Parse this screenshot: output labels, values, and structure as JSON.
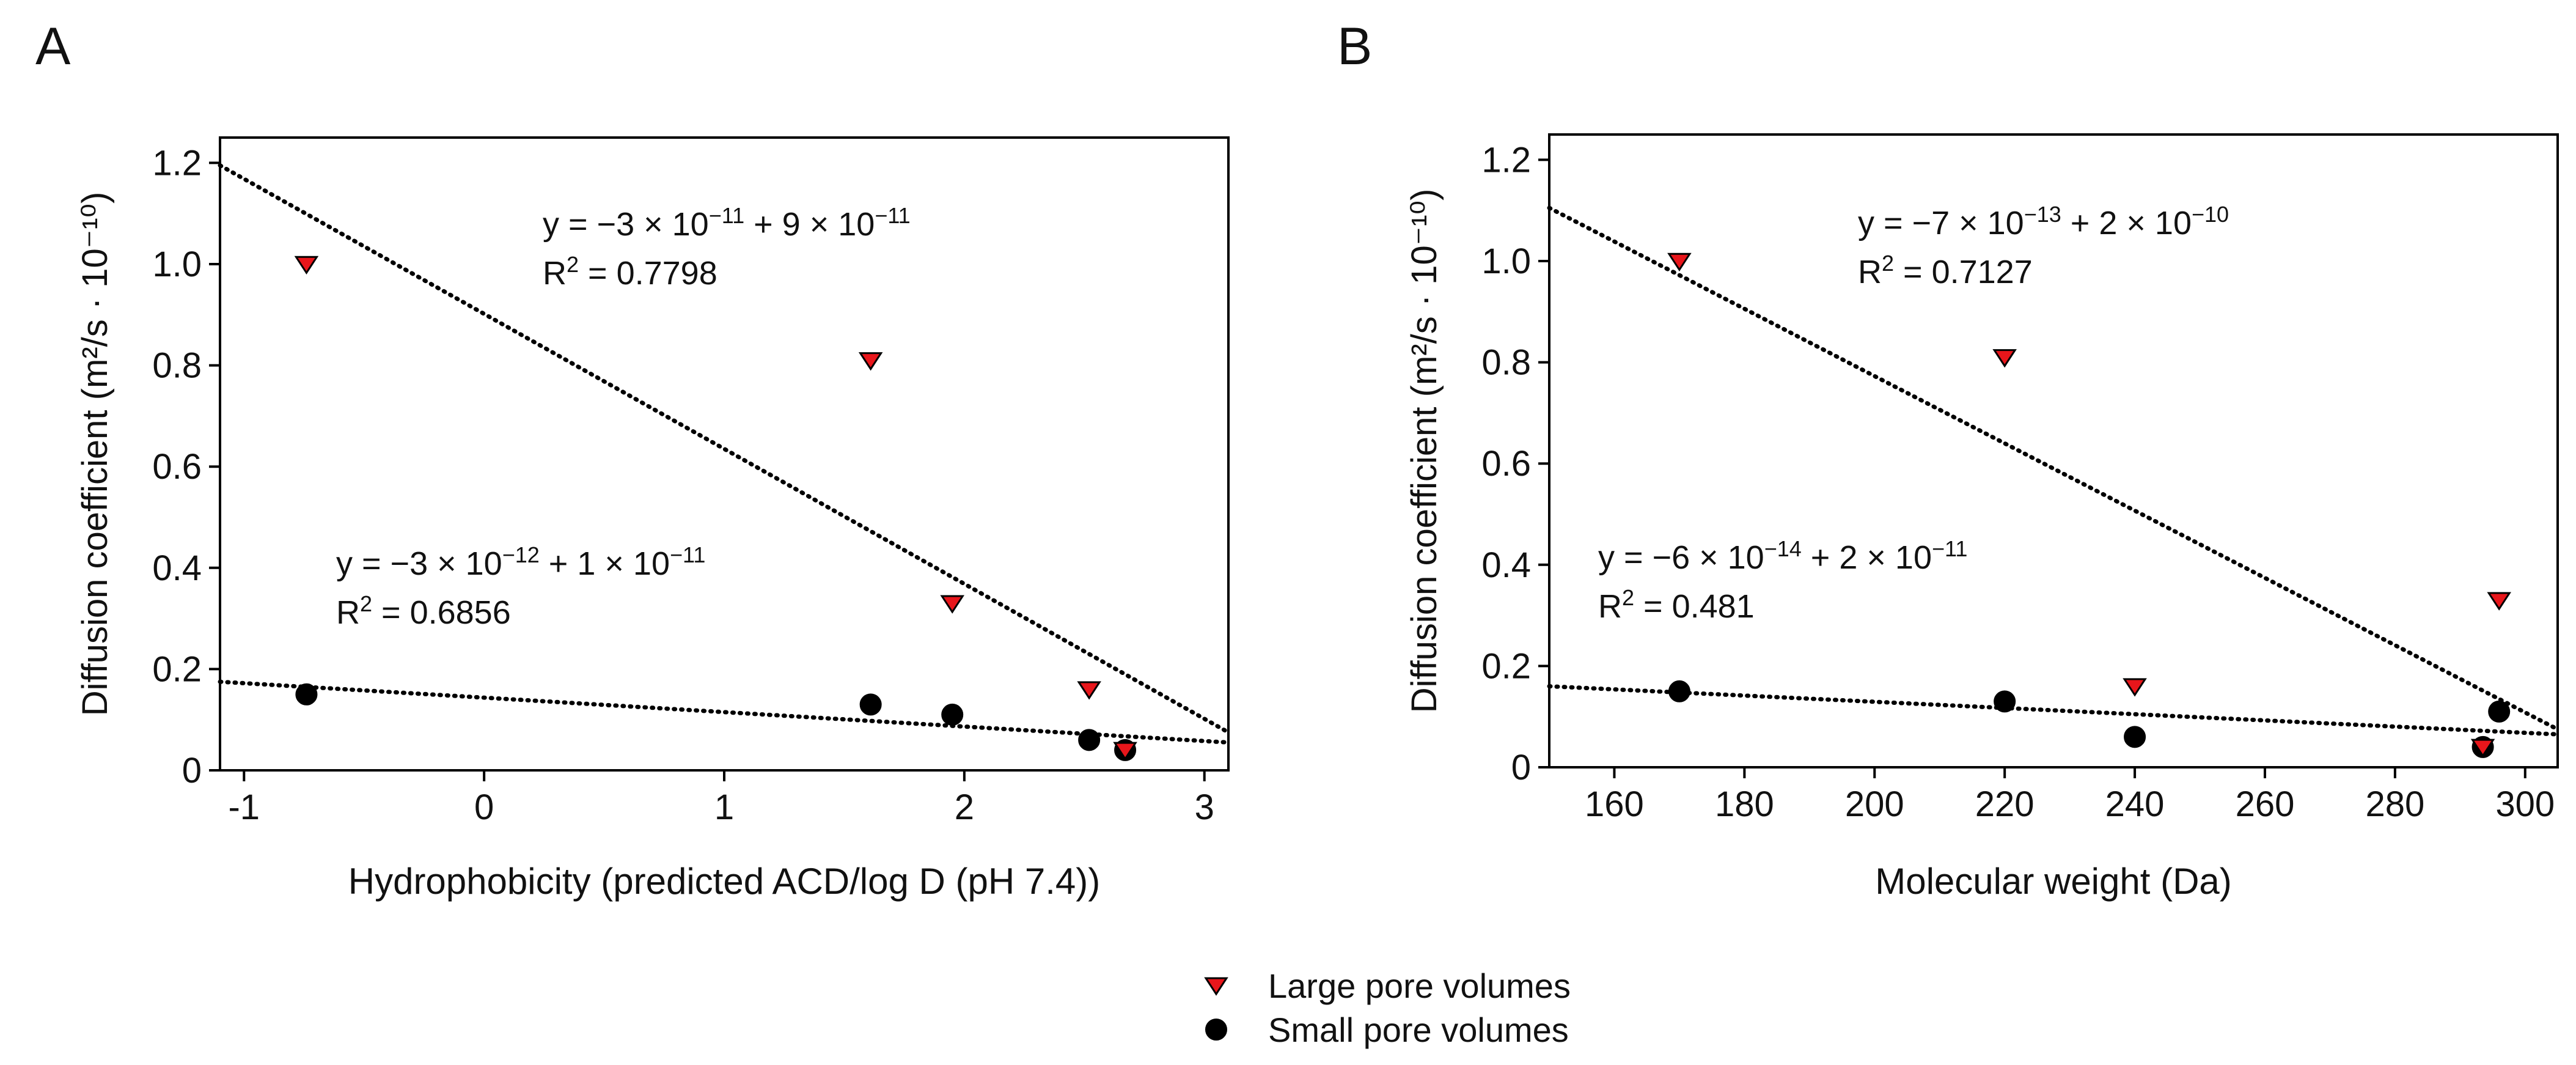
{
  "figure": {
    "panel_labels": [
      "A",
      "B"
    ],
    "legend": [
      {
        "label": "Large pore volumes",
        "marker": "triangle-down",
        "color": "#e8161b"
      },
      {
        "label": "Small pore volumes",
        "marker": "circle",
        "color": "#000000"
      }
    ]
  },
  "chart_data": [
    {
      "type": "scatter",
      "panel": "A",
      "xlabel": "Hydrophobicity (predicted ACD/log D (pH 7.4))",
      "ylabel": "Diffusion coefficient (m²/s · 10⁻¹⁰)",
      "xlim": [
        -1.1,
        3.1
      ],
      "ylim": [
        0,
        1.25
      ],
      "x_ticks": [
        -1,
        0,
        1,
        2,
        3
      ],
      "x_tick_labels": [
        "-1",
        "0",
        "1",
        "2",
        "3"
      ],
      "y_ticks": [
        0,
        0.2,
        0.4,
        0.6,
        0.8,
        1.0,
        1.2
      ],
      "y_tick_labels": [
        "0",
        "0.2",
        "0.4",
        "0.6",
        "0.8",
        "1.0",
        "1.2"
      ],
      "grid": false,
      "series": [
        {
          "name": "Large pore volumes",
          "marker": "triangle-down",
          "color": "#e8161b",
          "x": [
            -0.74,
            1.61,
            1.95,
            2.52,
            2.67
          ],
          "y": [
            1.0,
            0.81,
            0.33,
            0.16,
            0.04
          ]
        },
        {
          "name": "Small pore volumes",
          "marker": "circle",
          "color": "#000000",
          "x": [
            -0.74,
            1.61,
            1.95,
            2.52,
            2.67
          ],
          "y": [
            0.15,
            0.13,
            0.11,
            0.06,
            0.04
          ]
        }
      ],
      "trendlines": [
        {
          "series": "Large pore volumes",
          "x": [
            -1.1,
            3.1
          ],
          "y": [
            1.195,
            0.075
          ],
          "equation": {
            "prefix": "y = −3 × 10",
            "exp1": "−11",
            "mid": " + 9 × 10",
            "exp2": "−11"
          },
          "r2": {
            "prefix": "R",
            "sup": "2",
            "value": " = 0.7798"
          }
        },
        {
          "series": "Small pore volumes",
          "x": [
            -1.1,
            3.1
          ],
          "y": [
            0.175,
            0.055
          ],
          "equation": {
            "prefix": "y = −3 × 10",
            "exp1": "−12",
            "mid": " + 1 × 10",
            "exp2": "−11"
          },
          "r2": {
            "prefix": "R",
            "sup": "2",
            "value": " = 0.6856"
          }
        }
      ]
    },
    {
      "type": "scatter",
      "panel": "B",
      "xlabel": "Molecular weight (Da)",
      "ylabel": "Diffusion coefficient (m²/s · 10⁻¹⁰)",
      "xlim": [
        150,
        305
      ],
      "ylim": [
        0,
        1.25
      ],
      "x_ticks": [
        160,
        180,
        200,
        220,
        240,
        260,
        280,
        300
      ],
      "x_tick_labels": [
        "160",
        "180",
        "200",
        "220",
        "240",
        "260",
        "280",
        "300"
      ],
      "y_ticks": [
        0,
        0.2,
        0.4,
        0.6,
        0.8,
        1.0,
        1.2
      ],
      "y_tick_labels": [
        "0",
        "0.2",
        "0.4",
        "0.6",
        "0.8",
        "1.0",
        "1.2"
      ],
      "grid": false,
      "series": [
        {
          "name": "Large pore volumes",
          "marker": "triangle-down",
          "color": "#e8161b",
          "x": [
            170,
            220,
            240,
            293.5,
            296
          ],
          "y": [
            1.0,
            0.81,
            0.16,
            0.04,
            0.33
          ]
        },
        {
          "name": "Small pore volumes",
          "marker": "circle",
          "color": "#000000",
          "x": [
            170,
            220,
            240,
            293.5,
            296
          ],
          "y": [
            0.15,
            0.13,
            0.06,
            0.04,
            0.11
          ]
        }
      ],
      "trendlines": [
        {
          "series": "Large pore volumes",
          "x": [
            150,
            305
          ],
          "y": [
            1.105,
            0.075
          ],
          "equation": {
            "prefix": "y = −7 × 10",
            "exp1": "−13",
            "mid": " + 2 × 10",
            "exp2": "−10"
          },
          "r2": {
            "prefix": "R",
            "sup": "2",
            "value": " = 0.7127"
          }
        },
        {
          "series": "Small pore volumes",
          "x": [
            150,
            305
          ],
          "y": [
            0.16,
            0.065
          ],
          "equation": {
            "prefix": "y = −6 × 10",
            "exp1": "−14",
            "mid": " + 2 × 10",
            "exp2": "−11"
          },
          "r2": {
            "prefix": "R",
            "sup": "2",
            "value": " = 0.481"
          }
        }
      ]
    }
  ]
}
